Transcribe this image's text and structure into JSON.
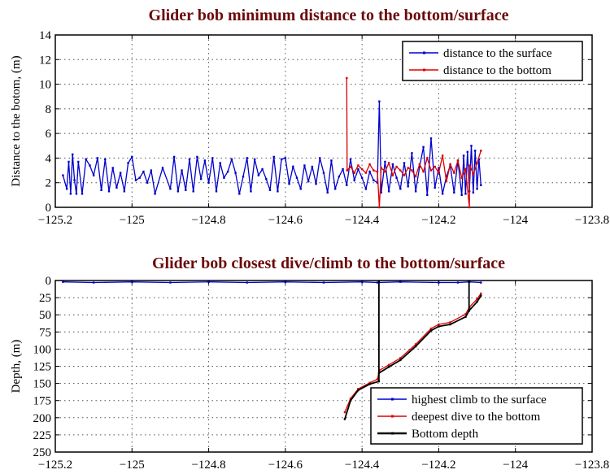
{
  "chart_data": [
    {
      "type": "line",
      "title": "Glider bob minimum distance to the bottom/surface",
      "xlabel": "",
      "ylabel": "Distance to the botom, (m)",
      "xlim": [
        -125.2,
        -123.8
      ],
      "ylim": [
        0,
        14
      ],
      "xticks": [
        "-125.2",
        "-125",
        "-124.8",
        "-124.6",
        "-124.4",
        "-124.2",
        "-124",
        "-123.8"
      ],
      "yticks": [
        "0",
        "2",
        "4",
        "6",
        "8",
        "10",
        "12",
        "14"
      ],
      "grid": true,
      "legend_position": "top-right",
      "series": [
        {
          "name": "distance to the surface",
          "color": "#0000cc",
          "x": [
            -125.18,
            -125.17,
            -125.165,
            -125.16,
            -125.155,
            -125.15,
            -125.145,
            -125.14,
            -125.13,
            -125.12,
            -125.11,
            -125.1,
            -125.09,
            -125.08,
            -125.07,
            -125.06,
            -125.05,
            -125.04,
            -125.03,
            -125.02,
            -125.01,
            -125.0,
            -124.99,
            -124.98,
            -124.97,
            -124.96,
            -124.95,
            -124.94,
            -124.92,
            -124.9,
            -124.89,
            -124.88,
            -124.87,
            -124.86,
            -124.85,
            -124.84,
            -124.83,
            -124.82,
            -124.81,
            -124.8,
            -124.79,
            -124.78,
            -124.77,
            -124.76,
            -124.75,
            -124.74,
            -124.73,
            -124.72,
            -124.71,
            -124.7,
            -124.69,
            -124.68,
            -124.67,
            -124.66,
            -124.65,
            -124.64,
            -124.63,
            -124.62,
            -124.61,
            -124.6,
            -124.59,
            -124.58,
            -124.57,
            -124.56,
            -124.55,
            -124.54,
            -124.53,
            -124.52,
            -124.51,
            -124.5,
            -124.49,
            -124.48,
            -124.47,
            -124.46,
            -124.45,
            -124.44,
            -124.43,
            -124.42,
            -124.41,
            -124.4,
            -124.39,
            -124.38,
            -124.37,
            -124.36,
            -124.355,
            -124.35,
            -124.34,
            -124.33,
            -124.32,
            -124.31,
            -124.3,
            -124.29,
            -124.28,
            -124.27,
            -124.26,
            -124.25,
            -124.24,
            -124.23,
            -124.22,
            -124.21,
            -124.2,
            -124.19,
            -124.18,
            -124.17,
            -124.16,
            -124.15,
            -124.14,
            -124.135,
            -124.13,
            -124.125,
            -124.12,
            -124.115,
            -124.11,
            -124.105,
            -124.1,
            -124.095,
            -124.09
          ],
          "y": [
            2.6,
            1.5,
            3.7,
            1.1,
            4.3,
            2.2,
            1.1,
            3.7,
            1.1,
            3.9,
            3.4,
            2.6,
            4.0,
            1.4,
            3.9,
            1.3,
            3.2,
            1.6,
            2.8,
            1.3,
            3.6,
            4.1,
            2.2,
            2.4,
            2.9,
            2.0,
            3.0,
            1.1,
            3.2,
            1.5,
            4.1,
            1.3,
            3.0,
            1.4,
            3.9,
            1.3,
            4.1,
            2.3,
            3.8,
            2.0,
            4.0,
            1.3,
            3.6,
            2.4,
            2.9,
            3.9,
            2.8,
            1.1,
            2.5,
            4.0,
            1.3,
            3.9,
            2.6,
            3.1,
            2.3,
            1.4,
            4.1,
            1.3,
            3.9,
            4.0,
            1.9,
            3.3,
            2.4,
            1.5,
            3.4,
            2.1,
            3.3,
            1.9,
            4.0,
            2.8,
            1.2,
            3.8,
            1.5,
            2.5,
            3.1,
            1.8,
            3.9,
            2.2,
            3.1,
            2.4,
            1.5,
            2.9,
            2.2,
            2.0,
            8.6,
            1.2,
            3.7,
            1.3,
            3.5,
            2.4,
            1.5,
            3.6,
            1.7,
            4.4,
            1.3,
            3.3,
            4.9,
            1.0,
            5.6,
            1.6,
            3.2,
            1.1,
            2.5,
            3.4,
            1.2,
            3.8,
            1.0,
            4.2,
            1.1,
            4.5,
            1.3,
            5.0,
            1.2,
            4.6,
            1.5,
            3.9,
            1.8
          ]
        },
        {
          "name": "distance to the bottom",
          "color": "#dd0000",
          "x": [
            -124.44,
            -124.439,
            -124.43,
            -124.42,
            -124.41,
            -124.4,
            -124.39,
            -124.38,
            -124.37,
            -124.36,
            -124.355,
            -124.35,
            -124.34,
            -124.33,
            -124.32,
            -124.31,
            -124.3,
            -124.29,
            -124.28,
            -124.27,
            -124.26,
            -124.25,
            -124.24,
            -124.23,
            -124.22,
            -124.21,
            -124.2,
            -124.19,
            -124.18,
            -124.17,
            -124.16,
            -124.15,
            -124.14,
            -124.13,
            -124.12,
            -124.119,
            -124.11,
            -124.1,
            -124.09
          ],
          "y": [
            10.5,
            3.0,
            3.3,
            2.8,
            3.4,
            3.1,
            2.8,
            3.5,
            3.0,
            2.9,
            0.0,
            3.2,
            2.9,
            3.6,
            2.6,
            3.3,
            3.0,
            2.6,
            3.2,
            3.0,
            2.5,
            3.5,
            2.9,
            4.0,
            3.0,
            3.3,
            2.8,
            4.2,
            2.1,
            3.5,
            2.8,
            3.8,
            2.4,
            3.1,
            0.0,
            3.4,
            2.7,
            3.6,
            4.6
          ]
        }
      ]
    },
    {
      "type": "line",
      "title": "Glider bob closest dive/climb to the bottom/surface",
      "xlabel": "",
      "ylabel": "Depth, (m)",
      "xlim": [
        -125.2,
        -123.8
      ],
      "ylim": [
        0,
        250
      ],
      "y_reversed": true,
      "xticks": [
        "-125.2",
        "-125",
        "-124.8",
        "-124.6",
        "-124.4",
        "-124.2",
        "-124",
        "-123.8"
      ],
      "yticks": [
        "0",
        "25",
        "50",
        "75",
        "100",
        "125",
        "150",
        "175",
        "200",
        "225",
        "250"
      ],
      "grid": true,
      "legend_position": "bottom-right",
      "series": [
        {
          "name": "highest climb to the surface",
          "color": "#0000cc",
          "x": [
            -125.18,
            -125.1,
            -125.0,
            -124.9,
            -124.8,
            -124.7,
            -124.6,
            -124.5,
            -124.4,
            -124.36,
            -124.3,
            -124.2,
            -124.15,
            -124.12,
            -124.09
          ],
          "y": [
            2,
            3,
            2,
            3,
            2,
            3,
            2,
            3,
            2,
            3,
            2,
            3,
            3,
            2,
            3
          ]
        },
        {
          "name": "deepest dive to the bottom",
          "color": "#dd0000",
          "x": [
            -124.445,
            -124.43,
            -124.41,
            -124.38,
            -124.36,
            -124.355,
            -124.33,
            -124.3,
            -124.26,
            -124.22,
            -124.2,
            -124.17,
            -124.13,
            -124.12,
            -124.1,
            -124.09
          ],
          "y": [
            192,
            172,
            158,
            149,
            144,
            131,
            123,
            113,
            93,
            70,
            64,
            61,
            49,
            39,
            27,
            19
          ]
        },
        {
          "name": "Bottom depth",
          "color": "#000000",
          "x": [
            -124.445,
            -124.43,
            -124.41,
            -124.38,
            -124.356,
            -124.356,
            -124.356,
            -124.33,
            -124.3,
            -124.26,
            -124.22,
            -124.2,
            -124.17,
            -124.13,
            -124.121,
            -124.121,
            -124.121,
            -124.1,
            -124.09
          ],
          "y": [
            202,
            175,
            160,
            151,
            147,
            2,
            135,
            126,
            116,
            96,
            73,
            67,
            64,
            53,
            44,
            2,
            44,
            31,
            22
          ]
        }
      ]
    }
  ]
}
